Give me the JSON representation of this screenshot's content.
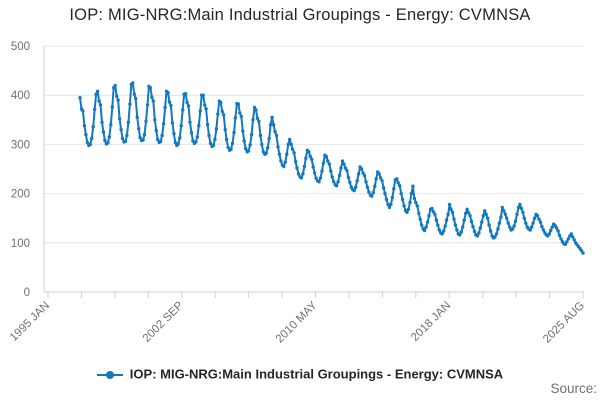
{
  "title": "IOP: MIG-NRG:Main Industrial Groupings - Energy: CVMNSA",
  "legend": {
    "label": "IOP: MIG-NRG:Main Industrial Groupings - Energy: CVMNSA"
  },
  "source": {
    "label": "Source:"
  },
  "colors": {
    "line": "#1478be",
    "title_text": "#262626",
    "axis_text": "#707070",
    "gridline": "#e4e4e4",
    "axis_line": "#c6d2e0"
  },
  "chart_data": {
    "type": "line",
    "title": "IOP: MIG-NRG:Main Industrial Groupings - Energy: CVMNSA",
    "xlabel": "",
    "ylabel": "",
    "ylim": [
      0,
      500
    ],
    "yticks": [
      0,
      100,
      200,
      300,
      400,
      500
    ],
    "grid": "horizontal",
    "legend_position": "bottom",
    "x_axis": {
      "range_start": "1995 JAN",
      "range_end": "2025 AUG",
      "tick_count": 17,
      "labeled_tick_labels": [
        "1995 JAN",
        "2002 SEP",
        "2010 MAY",
        "2018 JAN",
        "2025 AUG"
      ]
    },
    "series": [
      {
        "name": "IOP: MIG-NRG:Main Industrial Groupings - Energy: CVMNSA",
        "frequency": "monthly",
        "start": "1997 JAN",
        "end": "2025 AUG",
        "marker": "dot",
        "values_by_year": {
          "1997": [
            395,
            372,
            368,
            338,
            320,
            304,
            298,
            300,
            312,
            336,
            371,
            402
          ],
          "1998": [
            408,
            388,
            380,
            345,
            325,
            308,
            301,
            303,
            315,
            340,
            376,
            415
          ],
          "1999": [
            420,
            398,
            390,
            352,
            330,
            312,
            305,
            306,
            318,
            345,
            382,
            422
          ],
          "2000": [
            425,
            402,
            393,
            355,
            332,
            314,
            308,
            309,
            320,
            347,
            380,
            418
          ],
          "2001": [
            415,
            396,
            388,
            350,
            328,
            310,
            304,
            306,
            318,
            342,
            375,
            408
          ],
          "2002": [
            405,
            386,
            379,
            344,
            322,
            304,
            298,
            301,
            313,
            338,
            370,
            402
          ],
          "2003": [
            403,
            385,
            378,
            345,
            324,
            307,
            302,
            305,
            315,
            338,
            368,
            400
          ],
          "2004": [
            400,
            380,
            372,
            340,
            318,
            302,
            296,
            298,
            310,
            332,
            362,
            388
          ],
          "2005": [
            385,
            367,
            360,
            330,
            310,
            294,
            288,
            290,
            302,
            324,
            354,
            383
          ],
          "2006": [
            382,
            364,
            357,
            327,
            307,
            291,
            285,
            287,
            299,
            320,
            350,
            375
          ],
          "2007": [
            370,
            353,
            347,
            318,
            300,
            285,
            280,
            282,
            293,
            312,
            340,
            355
          ],
          "2008": [
            340,
            326,
            318,
            295,
            280,
            266,
            258,
            255,
            264,
            280,
            300,
            310
          ],
          "2009": [
            300,
            290,
            283,
            265,
            252,
            240,
            234,
            232,
            240,
            255,
            272,
            288
          ],
          "2010": [
            285,
            276,
            270,
            254,
            242,
            231,
            226,
            224,
            232,
            246,
            262,
            278
          ],
          "2011": [
            275,
            266,
            260,
            246,
            234,
            224,
            218,
            216,
            224,
            237,
            252,
            266
          ],
          "2012": [
            260,
            252,
            247,
            233,
            223,
            213,
            208,
            206,
            213,
            226,
            240,
            254
          ],
          "2013": [
            250,
            242,
            237,
            224,
            213,
            203,
            197,
            195,
            202,
            215,
            230,
            244
          ],
          "2014": [
            240,
            232,
            226,
            212,
            200,
            188,
            178,
            172,
            178,
            192,
            210,
            228
          ],
          "2015": [
            230,
            222,
            216,
            200,
            188,
            175,
            165,
            162,
            168,
            182,
            200,
            215
          ],
          "2016": [
            190,
            182,
            175,
            160,
            148,
            136,
            128,
            125,
            132,
            142,
            155,
            168
          ],
          "2017": [
            170,
            163,
            158,
            146,
            136,
            126,
            120,
            118,
            124,
            134,
            146,
            158
          ],
          "2018": [
            178,
            168,
            162,
            148,
            136,
            126,
            118,
            116,
            122,
            132,
            146,
            160
          ],
          "2019": [
            168,
            161,
            155,
            143,
            133,
            123,
            116,
            114,
            120,
            130,
            142,
            155
          ],
          "2020": [
            165,
            158,
            150,
            136,
            124,
            114,
            110,
            112,
            118,
            128,
            140,
            152
          ],
          "2021": [
            172,
            165,
            158,
            150,
            140,
            132,
            126,
            128,
            134,
            144,
            158,
            172
          ],
          "2022": [
            178,
            170,
            162,
            150,
            140,
            132,
            128,
            126,
            132,
            140,
            150,
            158
          ],
          "2023": [
            155,
            148,
            142,
            133,
            126,
            120,
            116,
            114,
            118,
            125,
            132,
            138
          ],
          "2024": [
            135,
            130,
            124,
            115,
            108,
            102,
            98,
            97,
            102,
            108,
            114,
            118
          ],
          "2025": [
            112,
            106,
            100,
            96,
            92,
            88,
            84,
            79
          ]
        }
      }
    ]
  }
}
